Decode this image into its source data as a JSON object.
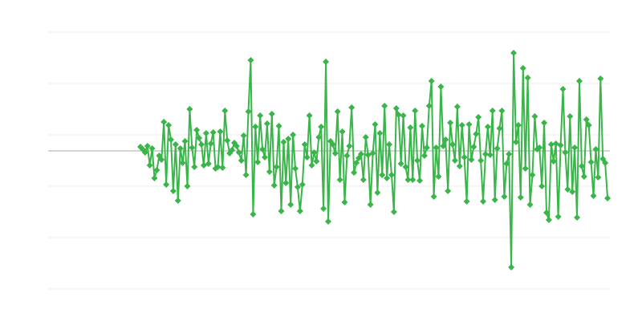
{
  "chart_data": {
    "type": "line",
    "title": "",
    "xlabel": "",
    "ylabel": "",
    "xlim": [
      -39.3,
      200
    ],
    "ylim": [
      -17.2,
      14.8
    ],
    "gridlines_y": [
      14.8,
      8.4,
      2.0,
      -4.4,
      -10.8,
      -17.2
    ],
    "baseline": 0,
    "grid": true,
    "legend": "none",
    "marker": "diamond",
    "colors": {
      "series": "#39b54a",
      "grid": "#ececec",
      "baseline": "#aaaaaa"
    },
    "series": [
      {
        "values": [
          0.5,
          0.2,
          -0.2,
          0.6,
          -1.8,
          0.3,
          -3.4,
          -2.4,
          -0.6,
          -1.1,
          3.6,
          -4.2,
          3.2,
          1.4,
          -5.0,
          0.8,
          -6.2,
          0.3,
          -1.5,
          1.2,
          -4.4,
          5.2,
          0.4,
          -2.0,
          2.6,
          1.6,
          0.8,
          -1.8,
          2.2,
          -1.6,
          0.9,
          2.3,
          -2.2,
          -2.0,
          2.4,
          -2.1,
          5.0,
          1.3,
          -0.3,
          0.1,
          1.0,
          0.6,
          -0.2,
          -1.2,
          1.9,
          -3.0,
          4.9,
          11.3,
          -7.9,
          3.0,
          -1.4,
          4.4,
          0.2,
          -0.8,
          3.4,
          -2.6,
          4.6,
          -4.3,
          -2.0,
          3.1,
          -7.5,
          1.1,
          -4.0,
          1.5,
          -6.7,
          2.0,
          -2.2,
          -4.5,
          -7.5,
          -4.2,
          0.8,
          -0.8,
          4.4,
          -1.8,
          -0.2,
          -1.3,
          1.7,
          3.0,
          -7.2,
          11.1,
          -8.8,
          1.2,
          0.8,
          -0.3,
          4.9,
          -3.6,
          2.4,
          -6.4,
          -0.6,
          0.6,
          5.4,
          -2.7,
          -1.5,
          -0.9,
          -0.4,
          -3.6,
          1.7,
          -0.5,
          -6.7,
          -0.3,
          3.3,
          -5.2,
          2.2,
          -3.0,
          5.6,
          -3.4,
          0.8,
          -3.0,
          -7.6,
          5.3,
          4.5,
          -1.6,
          4.4,
          -2.0,
          -3.6,
          2.9,
          -3.6,
          5.0,
          -1.2,
          -3.7,
          3.1,
          -0.6,
          0.4,
          5.6,
          8.7,
          -5.7,
          0.4,
          -3.2,
          8.0,
          0.6,
          1.4,
          -5.0,
          3.5,
          0.8,
          -1.2,
          5.5,
          -1.9,
          3.2,
          -0.8,
          -6.3,
          3.3,
          -1.1,
          0.5,
          2.1,
          4.2,
          -1.2,
          -6.3,
          -0.4,
          3.0,
          -0.5,
          5.0,
          -6.1,
          0.3,
          2.8,
          5.0,
          -5.7,
          -1.6,
          -0.4,
          -14.5,
          12.2,
          1.1,
          3.2,
          -5.8,
          10.3,
          -2.2,
          9.1,
          -6.7,
          -3.0,
          4.3,
          0.2,
          0.4,
          -4.4,
          3.5,
          -7.7,
          -8.6,
          0.8,
          -1.3,
          0.9,
          -8.2,
          0.7,
          7.7,
          -0.2,
          -4.8,
          4.3,
          -5.1,
          0.4,
          -8.3,
          8.7,
          -1.9,
          -3.2,
          3.9,
          3.2,
          -1.4,
          -5.6,
          0.2,
          -3.3,
          9.0,
          -1.0,
          -1.5,
          -5.9
        ]
      }
    ]
  }
}
